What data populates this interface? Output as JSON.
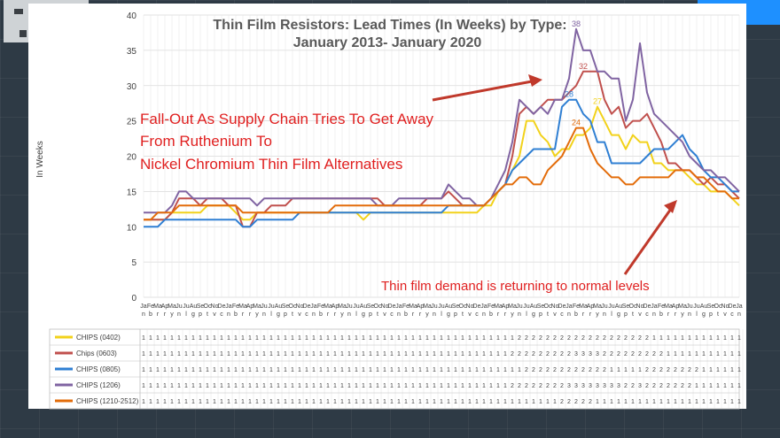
{
  "colors": {
    "chips_0402": "#f2d21b",
    "chips_0603": "#c0504d",
    "chips_0805": "#2f7fd3",
    "chips_1206": "#8064a2",
    "chips_1210_2512": "#e36c0a",
    "annotation": "#e02020"
  },
  "y_axis_title": "In Weeks",
  "annotations": {
    "fall_out": [
      "Fall-Out As Supply Chain Tries To Get Away",
      "From Ruthenium To",
      "Nickel Chromium Thin Film Alternatives"
    ],
    "returning": "Thin film demand is returning to normal levels"
  },
  "chart_data": {
    "type": "line",
    "title": [
      "Thin Film Resistors: Lead Times (In Weeks) by Type:",
      "January 2013- January 2020"
    ],
    "ylabel": "In Weeks",
    "ylim": [
      0,
      40
    ],
    "yticks": [
      0,
      5,
      10,
      15,
      20,
      25,
      30,
      35,
      40
    ],
    "grid": true,
    "legend": "table-bottom",
    "n_points": 85,
    "x_start": "Jan 2013",
    "x_end": "Jan 2020",
    "categories": [
      "Jan",
      "Feb",
      "Mar",
      "Apr",
      "May",
      "Jun",
      "Jul",
      "Aug",
      "Sep",
      "Oct",
      "Nov",
      "Dec",
      "Jan",
      "Feb",
      "Mar",
      "Apr",
      "May",
      "Jun",
      "Jul",
      "Aug",
      "Sep",
      "Oct",
      "Nov",
      "Dec",
      "Jan",
      "Feb",
      "Mar",
      "Apr",
      "May",
      "Jun",
      "Jul",
      "Aug",
      "Sep",
      "Oct",
      "Nov",
      "Dec",
      "Jan",
      "Feb",
      "Mar",
      "Apr",
      "May",
      "Jun",
      "Jul",
      "Aug",
      "Sep",
      "Oct",
      "Nov",
      "Dec",
      "Jan",
      "Feb",
      "Mar",
      "Apr",
      "May",
      "Jun",
      "Jul",
      "Aug",
      "Sep",
      "Oct",
      "Nov",
      "Dec",
      "Jan",
      "Feb",
      "Mar",
      "Apr",
      "May",
      "Jun",
      "Jul",
      "Aug",
      "Sep",
      "Oct",
      "Nov",
      "Dec",
      "Jan",
      "Feb",
      "Mar",
      "Apr",
      "May",
      "Jun",
      "Jul",
      "Aug",
      "Sep",
      "Oct",
      "Nov",
      "Dec",
      "Jan"
    ],
    "series": [
      {
        "name": "CHIPS (0402)",
        "color": "#f2d21b",
        "values": [
          11,
          11,
          11,
          11,
          12,
          12,
          12,
          12,
          12,
          13,
          13,
          13,
          13,
          12,
          11,
          11,
          12,
          12,
          12,
          12,
          12,
          12,
          12,
          12,
          12,
          12,
          12,
          12,
          12,
          12,
          12,
          11,
          12,
          12,
          12,
          12,
          12,
          12,
          12,
          12,
          12,
          12,
          12,
          12,
          12,
          12,
          12,
          12,
          13,
          13,
          15,
          16,
          18,
          20,
          25,
          25,
          23,
          22,
          20,
          21,
          21,
          23,
          23,
          24,
          27,
          25,
          23,
          23,
          21,
          23,
          22,
          22,
          19,
          19,
          18,
          18,
          18,
          17,
          16,
          16,
          15,
          15,
          15,
          14,
          13
        ]
      },
      {
        "name": "Chips (0603)",
        "color": "#c0504d",
        "values": [
          11,
          11,
          11,
          11,
          12,
          14,
          14,
          14,
          13,
          14,
          14,
          14,
          13,
          13,
          10,
          10,
          12,
          12,
          13,
          13,
          13,
          14,
          14,
          14,
          14,
          14,
          14,
          14,
          14,
          14,
          14,
          14,
          14,
          14,
          13,
          13,
          13,
          13,
          13,
          13,
          14,
          14,
          14,
          15,
          14,
          13,
          13,
          13,
          13,
          14,
          15,
          16,
          20,
          26,
          27,
          26,
          27,
          28,
          28,
          28,
          29,
          30,
          32,
          32,
          32,
          28,
          26,
          27,
          24,
          25,
          25,
          26,
          24,
          22,
          19,
          19,
          18,
          18,
          17,
          16,
          17,
          16,
          16,
          15,
          14
        ]
      },
      {
        "name": "CHIPS (0805)",
        "color": "#2f7fd3",
        "values": [
          10,
          10,
          10,
          11,
          11,
          11,
          11,
          11,
          11,
          11,
          11,
          11,
          11,
          11,
          10,
          10,
          11,
          11,
          11,
          11,
          11,
          11,
          12,
          12,
          12,
          12,
          12,
          12,
          12,
          12,
          12,
          12,
          12,
          12,
          12,
          12,
          12,
          12,
          12,
          12,
          12,
          12,
          12,
          13,
          13,
          13,
          13,
          13,
          13,
          14,
          15,
          16,
          18,
          19,
          20,
          21,
          21,
          21,
          21,
          27,
          28,
          28,
          26,
          25,
          22,
          22,
          19,
          19,
          19,
          19,
          19,
          20,
          21,
          21,
          21,
          22,
          23,
          21,
          20,
          18,
          17,
          17,
          16,
          15,
          15
        ]
      },
      {
        "name": "CHIPS (1206)",
        "color": "#8064a2",
        "values": [
          12,
          12,
          12,
          12,
          13,
          15,
          15,
          14,
          14,
          14,
          14,
          14,
          14,
          14,
          14,
          14,
          13,
          14,
          14,
          14,
          14,
          14,
          14,
          14,
          14,
          14,
          14,
          14,
          14,
          14,
          14,
          14,
          14,
          13,
          13,
          13,
          14,
          14,
          14,
          14,
          14,
          14,
          14,
          16,
          15,
          14,
          14,
          13,
          13,
          14,
          16,
          18,
          22,
          28,
          27,
          26,
          27,
          26,
          28,
          28,
          31,
          38,
          35,
          35,
          32,
          32,
          31,
          31,
          25,
          28,
          36,
          29,
          26,
          25,
          24,
          23,
          22,
          20,
          19,
          18,
          18,
          17,
          17,
          16,
          15
        ]
      },
      {
        "name": "CHIPS (1210-2512)",
        "color": "#e36c0a",
        "values": [
          11,
          11,
          12,
          12,
          12,
          13,
          13,
          13,
          13,
          13,
          13,
          13,
          13,
          13,
          12,
          12,
          12,
          12,
          12,
          12,
          12,
          12,
          12,
          12,
          12,
          12,
          12,
          13,
          13,
          13,
          13,
          13,
          13,
          13,
          13,
          13,
          13,
          13,
          13,
          13,
          13,
          13,
          13,
          13,
          13,
          13,
          13,
          13,
          13,
          14,
          15,
          16,
          16,
          17,
          17,
          16,
          16,
          18,
          19,
          20,
          22,
          24,
          24,
          21,
          19,
          18,
          17,
          17,
          16,
          16,
          17,
          17,
          17,
          17,
          17,
          18,
          18,
          18,
          17,
          17,
          16,
          15,
          15,
          14,
          14
        ]
      }
    ]
  }
}
